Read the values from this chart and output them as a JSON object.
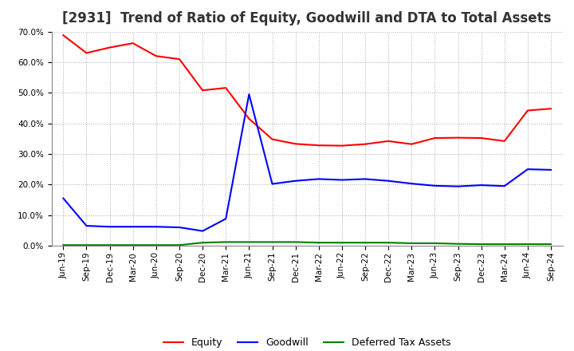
{
  "title": "[2931]  Trend of Ratio of Equity, Goodwill and DTA to Total Assets",
  "x_labels": [
    "Jun-19",
    "Sep-19",
    "Dec-19",
    "Mar-20",
    "Jun-20",
    "Sep-20",
    "Dec-20",
    "Mar-21",
    "Jun-21",
    "Sep-21",
    "Dec-21",
    "Mar-22",
    "Jun-22",
    "Sep-22",
    "Dec-22",
    "Mar-23",
    "Jun-23",
    "Sep-23",
    "Dec-23",
    "Mar-24",
    "Jun-24",
    "Sep-24"
  ],
  "equity": [
    0.688,
    0.63,
    0.648,
    0.662,
    0.62,
    0.61,
    0.508,
    0.516,
    0.415,
    0.348,
    0.333,
    0.328,
    0.327,
    0.332,
    0.342,
    0.332,
    0.352,
    0.353,
    0.352,
    0.342,
    0.442,
    0.448
  ],
  "goodwill": [
    0.155,
    0.065,
    0.062,
    0.062,
    0.062,
    0.06,
    0.048,
    0.088,
    0.495,
    0.202,
    0.212,
    0.218,
    0.215,
    0.218,
    0.212,
    0.203,
    0.196,
    0.194,
    0.198,
    0.195,
    0.25,
    0.248
  ],
  "dta": [
    0.002,
    0.002,
    0.002,
    0.002,
    0.002,
    0.002,
    0.01,
    0.012,
    0.012,
    0.012,
    0.012,
    0.01,
    0.01,
    0.01,
    0.01,
    0.008,
    0.008,
    0.006,
    0.005,
    0.005,
    0.005,
    0.005
  ],
  "equity_color": "#FF0000",
  "goodwill_color": "#0000FF",
  "dta_color": "#008000",
  "background_color": "#FFFFFF",
  "grid_color": "#AAAAAA",
  "ylim": [
    0.0,
    0.7
  ],
  "yticks": [
    0.0,
    0.1,
    0.2,
    0.3,
    0.4,
    0.5,
    0.6,
    0.7
  ],
  "title_fontsize": 12,
  "tick_fontsize": 7.5,
  "legend_labels": [
    "Equity",
    "Goodwill",
    "Deferred Tax Assets"
  ],
  "legend_fontsize": 9
}
